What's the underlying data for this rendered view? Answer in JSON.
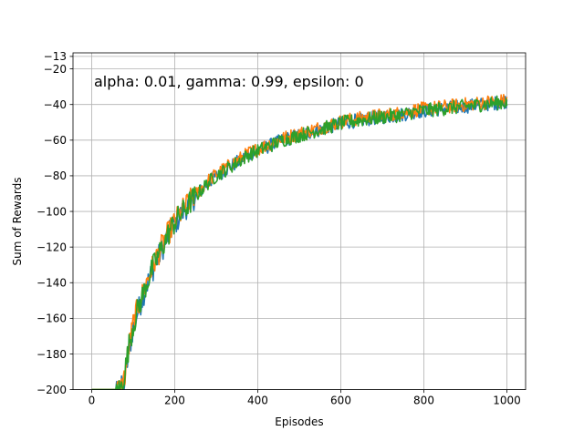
{
  "chart_data": {
    "type": "line",
    "title": "",
    "annotation": "alpha: 0.01, gamma: 0.99, epsilon: 0",
    "xlabel": "Episodes",
    "ylabel": "Sum of Rewards",
    "xlim": [
      -45,
      1045
    ],
    "ylim": [
      -200,
      -11
    ],
    "x_ticks": [
      0,
      200,
      400,
      600,
      800,
      1000
    ],
    "y_ticks": [
      -200,
      -180,
      -160,
      -140,
      -120,
      -100,
      -80,
      -60,
      -40,
      -20,
      -13
    ],
    "grid": true,
    "legend": "none",
    "series": [
      {
        "color": "#1f77b4",
        "x": [
          0,
          50,
          60,
          70,
          80,
          90,
          100,
          110,
          120,
          130,
          140,
          150,
          160,
          170,
          180,
          190,
          200,
          220,
          240,
          260,
          280,
          300,
          320,
          340,
          360,
          380,
          400,
          430,
          460,
          490,
          520,
          550,
          580,
          610,
          640,
          670,
          700,
          740,
          780,
          820,
          860,
          900,
          940,
          980,
          1000
        ],
        "y": [
          -200,
          -200,
          -200,
          -200,
          -195,
          -178,
          -165,
          -157,
          -150,
          -143,
          -137,
          -131,
          -126,
          -121,
          -116,
          -111,
          -107,
          -100,
          -94,
          -89,
          -84,
          -80,
          -77,
          -74,
          -71,
          -68,
          -66,
          -63,
          -60,
          -58,
          -56,
          -54,
          -52,
          -50,
          -49,
          -48,
          -47,
          -46,
          -44,
          -43,
          -42,
          -41,
          -40,
          -39,
          -38
        ]
      },
      {
        "color": "#ff7f0e",
        "x": [
          0,
          50,
          60,
          70,
          80,
          90,
          100,
          110,
          120,
          130,
          140,
          150,
          160,
          170,
          180,
          190,
          200,
          220,
          240,
          260,
          280,
          300,
          320,
          340,
          360,
          380,
          400,
          430,
          460,
          490,
          520,
          550,
          580,
          610,
          640,
          670,
          700,
          740,
          780,
          820,
          860,
          900,
          940,
          980,
          1000
        ],
        "y": [
          -200,
          -200,
          -200,
          -200,
          -192,
          -176,
          -163,
          -155,
          -148,
          -141,
          -135,
          -129,
          -124,
          -119,
          -114,
          -110,
          -106,
          -99,
          -93,
          -88,
          -83,
          -79,
          -76,
          -73,
          -70,
          -67,
          -65,
          -62,
          -59,
          -57,
          -55,
          -53,
          -51,
          -49,
          -48,
          -47,
          -46,
          -45,
          -43,
          -42,
          -41,
          -40,
          -39,
          -38,
          -38
        ]
      },
      {
        "color": "#2ca02c",
        "x": [
          0,
          50,
          60,
          70,
          80,
          90,
          100,
          110,
          120,
          130,
          140,
          150,
          160,
          170,
          180,
          190,
          200,
          220,
          240,
          260,
          280,
          300,
          320,
          340,
          360,
          380,
          400,
          430,
          460,
          490,
          520,
          550,
          580,
          610,
          640,
          670,
          700,
          740,
          780,
          820,
          860,
          900,
          940,
          980,
          1000
        ],
        "y": [
          -200,
          -200,
          -200,
          -200,
          -190,
          -175,
          -164,
          -156,
          -149,
          -142,
          -136,
          -130,
          -125,
          -120,
          -115,
          -110,
          -106,
          -100,
          -94,
          -89,
          -84,
          -80,
          -77,
          -74,
          -71,
          -68,
          -66,
          -63,
          -60,
          -58,
          -56,
          -54,
          -52,
          -50,
          -49,
          -48,
          -47,
          -46,
          -44,
          -43,
          -42,
          -41,
          -40,
          -39,
          -39
        ]
      }
    ]
  }
}
